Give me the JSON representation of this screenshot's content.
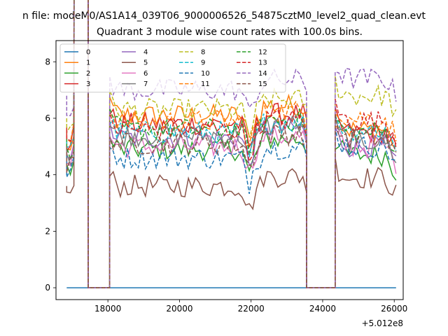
{
  "suptitle": "n file: modeM0/AS1A14_039T06_9000006526_54875cztM0_level2_quad_clean.evt",
  "chart_data": {
    "type": "line",
    "title": "Quadrant 3 module wise count rates with 100.0s bins.",
    "xlabel": "",
    "ylabel": "",
    "x_offset_label": "+5.012e8",
    "x_offset": 501200000,
    "xlim": [
      16550,
      26250
    ],
    "ylim": [
      -0.42,
      8.75
    ],
    "xticks": [
      18000,
      20000,
      22000,
      24000,
      26000
    ],
    "xtick_labels": [
      "18000",
      "20000",
      "22000",
      "24000",
      "26000"
    ],
    "yticks": [
      0,
      2,
      4,
      6,
      8
    ],
    "ytick_labels": [
      "0",
      "2",
      "4",
      "6",
      "8"
    ],
    "grid": false,
    "legend": {
      "position": "upper-left",
      "ncol": 4
    },
    "segments": [
      {
        "x_start": 16850,
        "x_end": 17450
      },
      {
        "x_start": 18050,
        "x_end": 23550
      },
      {
        "x_start": 24350,
        "x_end": 26050
      }
    ],
    "gap_x": [
      17450,
      18050,
      23550,
      24350
    ],
    "series": [
      {
        "name": "0",
        "color": "#1f77b4",
        "dash": "solid",
        "levels": [
          0,
          0,
          0
        ]
      },
      {
        "name": "1",
        "color": "#ff7f0e",
        "dash": "solid",
        "levels": [
          5.4,
          6.1,
          5.6
        ]
      },
      {
        "name": "2",
        "color": "#2ca02c",
        "dash": "solid",
        "levels": [
          4.6,
          4.9,
          4.7
        ]
      },
      {
        "name": "3",
        "color": "#d62728",
        "dash": "solid",
        "levels": [
          5.7,
          5.8,
          5.5
        ]
      },
      {
        "name": "4",
        "color": "#9467bd",
        "dash": "solid",
        "levels": [
          4.9,
          5.3,
          5.0
        ]
      },
      {
        "name": "5",
        "color": "#8c564b",
        "dash": "solid",
        "levels": [
          3.6,
          3.6,
          3.9
        ]
      },
      {
        "name": "6",
        "color": "#e377c2",
        "dash": "solid",
        "levels": [
          4.8,
          5.0,
          5.0
        ]
      },
      {
        "name": "7",
        "color": "#7f7f7f",
        "dash": "solid",
        "levels": [
          5.0,
          5.4,
          5.2
        ]
      },
      {
        "name": "8",
        "color": "#bcbd22",
        "dash": "dashed",
        "levels": [
          6.0,
          6.3,
          6.8
        ]
      },
      {
        "name": "9",
        "color": "#17becf",
        "dash": "dashed",
        "levels": [
          5.2,
          5.5,
          5.6
        ]
      },
      {
        "name": "10",
        "color": "#1f77b4",
        "dash": "dashed",
        "levels": [
          4.7,
          4.6,
          5.0
        ]
      },
      {
        "name": "11",
        "color": "#ff7f0e",
        "dash": "dashed",
        "levels": [
          5.6,
          5.9,
          6.0
        ]
      },
      {
        "name": "12",
        "color": "#2ca02c",
        "dash": "dashed",
        "levels": [
          5.3,
          5.6,
          5.5
        ]
      },
      {
        "name": "13",
        "color": "#d62728",
        "dash": "dashed",
        "levels": [
          5.6,
          5.6,
          5.9
        ]
      },
      {
        "name": "14",
        "color": "#9467bd",
        "dash": "dashed",
        "levels": [
          6.8,
          7.0,
          7.4
        ]
      },
      {
        "name": "15",
        "color": "#8c564b",
        "dash": "dashed",
        "levels": [
          5.0,
          5.1,
          5.3
        ]
      }
    ]
  }
}
